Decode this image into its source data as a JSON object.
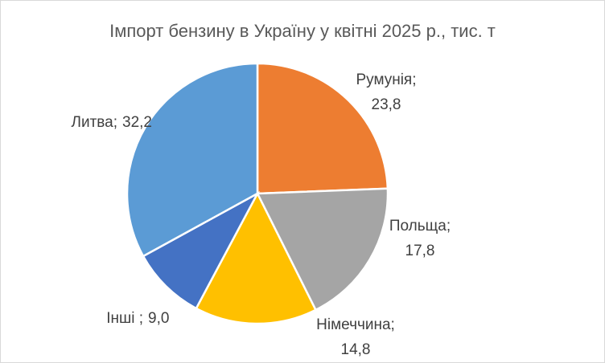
{
  "chart_data": {
    "type": "pie",
    "title": "Імпорт бензину в Україну у квітні 2025 р., тис. т",
    "categories": [
      "Румунія;",
      "Польща;",
      "Німеччина;",
      "Інші ;",
      "Литва;"
    ],
    "values": [
      23.8,
      17.8,
      14.8,
      9.0,
      32.2
    ],
    "value_labels": [
      "23,8",
      "17,8",
      "14,8",
      "9,0",
      "32,2"
    ],
    "colors": [
      "#ED7D31",
      "#A5A5A5",
      "#FFC000",
      "#4472C4",
      "#5B9BD5"
    ]
  }
}
